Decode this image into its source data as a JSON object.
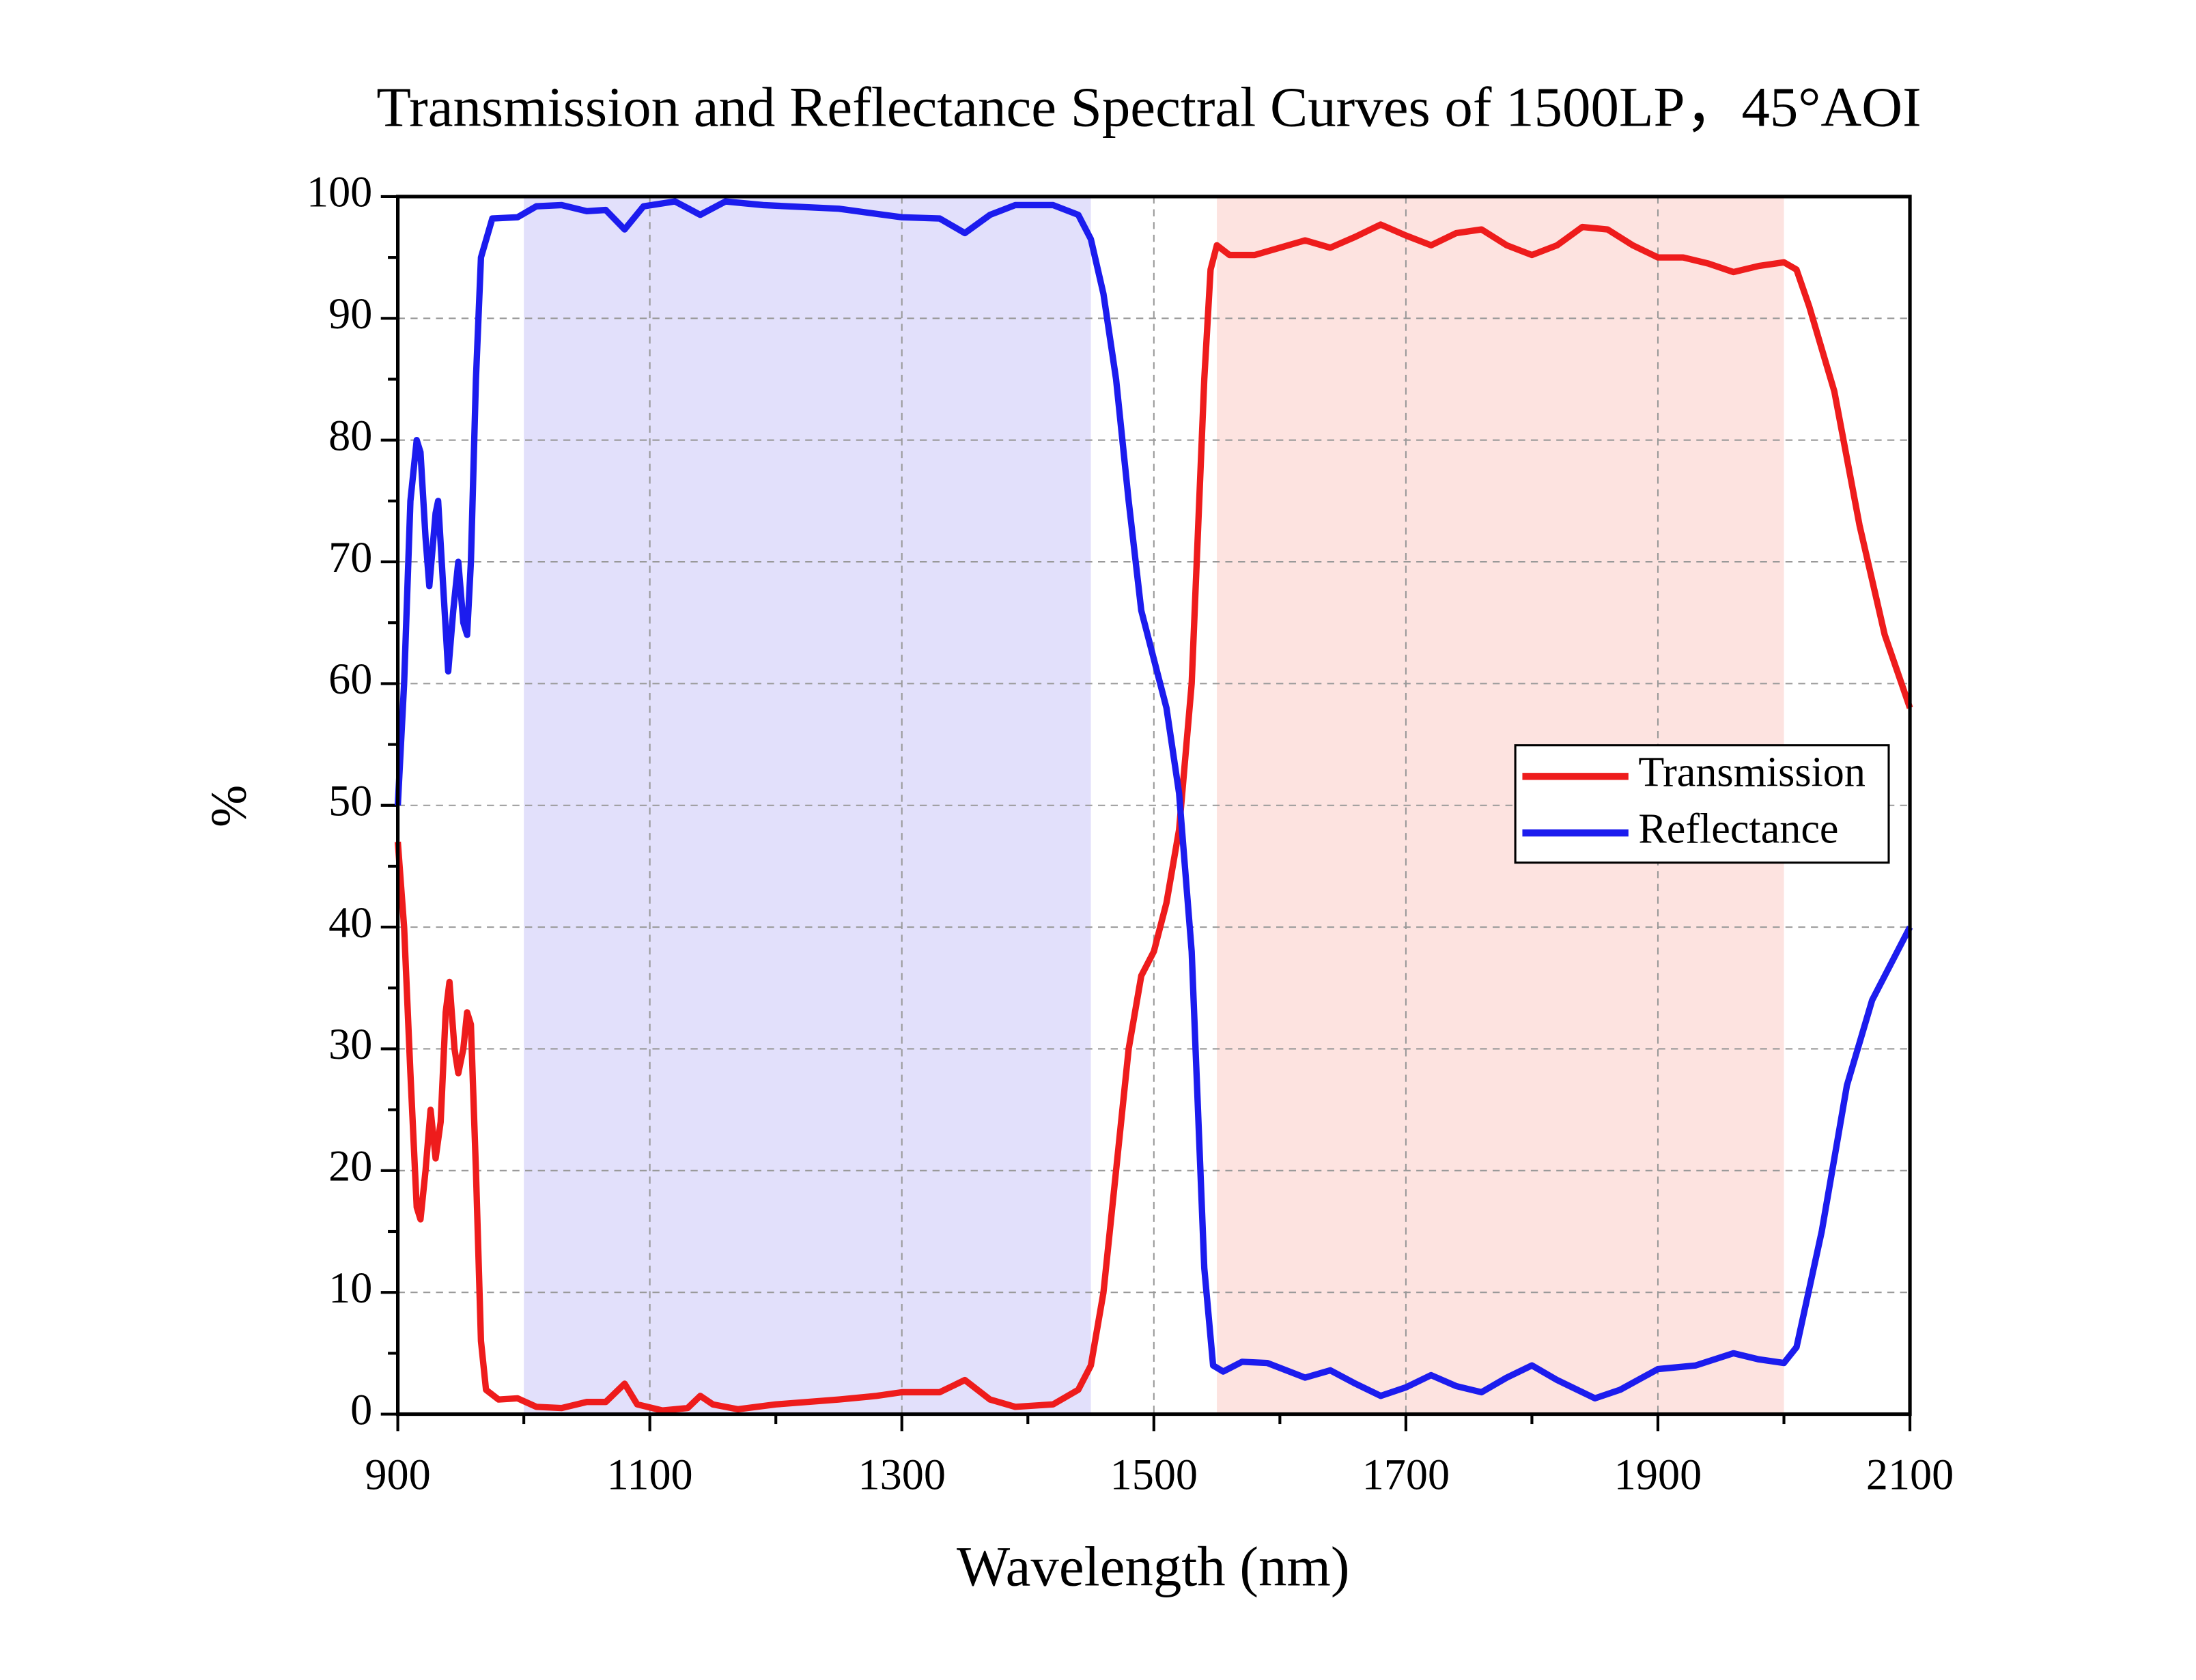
{
  "chart_data": {
    "type": "line",
    "title": "Transmission and Reflectance Spectral Curves of 1500LP，45°AOI",
    "x_label": "Wavelength (nm)",
    "y_label": "%",
    "xlim": [
      900,
      2100
    ],
    "xticks": [
      900,
      1100,
      1300,
      1500,
      1700,
      1900,
      2100
    ],
    "ylim": [
      0,
      100
    ],
    "yticks": [
      0,
      10,
      20,
      30,
      40,
      50,
      60,
      70,
      80,
      90,
      100
    ],
    "grid": true,
    "legend_position": "right",
    "bands": [
      {
        "x": [
          1000,
          1450
        ],
        "color": "#e2e0fb"
      },
      {
        "x": [
          1550,
          2000
        ],
        "color": "#fde3e0"
      }
    ],
    "series": [
      {
        "name": "Transmission",
        "color": "#ee1c1c",
        "x": [
          900,
          905,
          910,
          915,
          918,
          922,
          926,
          930,
          934,
          938,
          941,
          945,
          948,
          952,
          955,
          958,
          962,
          966,
          970,
          980,
          995,
          1010,
          1030,
          1050,
          1065,
          1080,
          1090,
          1110,
          1130,
          1140,
          1150,
          1170,
          1200,
          1250,
          1280,
          1300,
          1330,
          1350,
          1370,
          1390,
          1420,
          1440,
          1450,
          1460,
          1470,
          1480,
          1490,
          1500,
          1510,
          1520,
          1530,
          1540,
          1545,
          1550,
          1560,
          1580,
          1600,
          1620,
          1640,
          1660,
          1680,
          1700,
          1720,
          1740,
          1760,
          1780,
          1800,
          1820,
          1840,
          1860,
          1880,
          1900,
          1920,
          1940,
          1960,
          1980,
          2000,
          2010,
          2020,
          2040,
          2060,
          2080,
          2100
        ],
        "values": [
          47,
          40,
          28,
          17,
          16,
          20,
          25,
          21,
          24,
          33,
          35.5,
          30,
          28,
          30,
          33,
          32,
          20,
          6,
          2,
          1.2,
          1.3,
          0.6,
          0.5,
          1,
          1,
          2.5,
          0.8,
          0.3,
          0.5,
          1.5,
          0.8,
          0.4,
          0.8,
          1.2,
          1.5,
          1.8,
          1.8,
          2.8,
          1.2,
          0.6,
          0.8,
          2,
          4,
          10,
          20,
          30,
          36,
          38,
          42,
          48,
          60,
          85,
          94,
          96,
          95.2,
          95.2,
          95.8,
          96.4,
          95.8,
          96.7,
          97.7,
          96.8,
          96,
          97,
          97.3,
          96,
          95.2,
          96,
          97.5,
          97.3,
          96,
          95,
          95,
          94.5,
          93.8,
          94.3,
          94.6,
          94,
          91,
          84,
          73,
          64,
          58
        ]
      },
      {
        "name": "Reflectance",
        "color": "#1c1cee",
        "x": [
          900,
          905,
          910,
          915,
          918,
          922,
          925,
          930,
          932,
          936,
          940,
          944,
          948,
          952,
          955,
          958,
          962,
          966,
          975,
          995,
          1010,
          1030,
          1050,
          1065,
          1080,
          1095,
          1120,
          1140,
          1160,
          1190,
          1250,
          1300,
          1330,
          1350,
          1370,
          1390,
          1420,
          1440,
          1450,
          1460,
          1470,
          1480,
          1490,
          1500,
          1510,
          1520,
          1530,
          1540,
          1547,
          1555,
          1570,
          1590,
          1620,
          1640,
          1660,
          1680,
          1700,
          1720,
          1740,
          1760,
          1780,
          1800,
          1820,
          1850,
          1870,
          1900,
          1930,
          1960,
          1980,
          2000,
          2010,
          2030,
          2050,
          2070,
          2090,
          2100
        ],
        "values": [
          50,
          60,
          75,
          80,
          79,
          72,
          68,
          74,
          75,
          68,
          61,
          66,
          70,
          65,
          64,
          70,
          85,
          95,
          98.2,
          98.3,
          99.2,
          99.3,
          98.8,
          98.9,
          97.3,
          99.2,
          99.6,
          98.5,
          99.6,
          99.3,
          99,
          98.3,
          98.2,
          97,
          98.5,
          99.3,
          99.3,
          98.5,
          96.5,
          92,
          85,
          75,
          66,
          62,
          58,
          51,
          38,
          12,
          4,
          3.5,
          4.3,
          4.2,
          3,
          3.6,
          2.5,
          1.5,
          2.2,
          3.2,
          2.3,
          1.8,
          3,
          4,
          2.8,
          1.3,
          2,
          3.7,
          4,
          5,
          4.5,
          4.2,
          5.5,
          15,
          27,
          34,
          38,
          40
        ]
      }
    ]
  }
}
